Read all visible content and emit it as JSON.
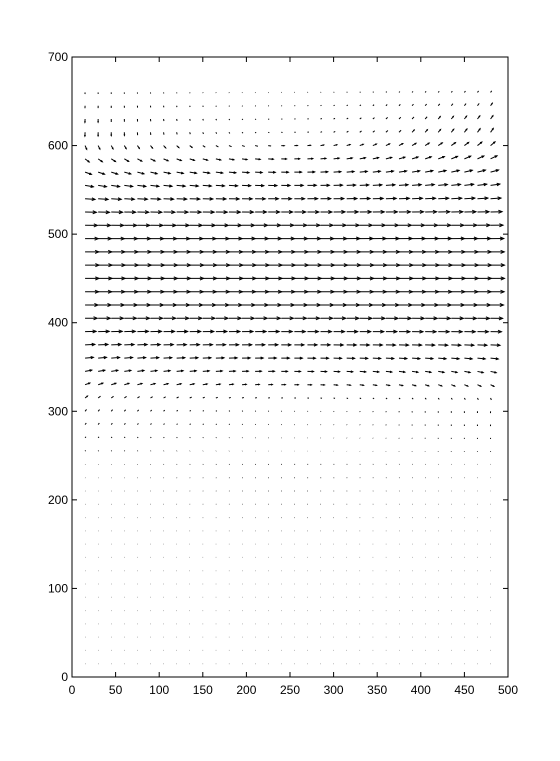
{
  "chart_data": {
    "type": "quiver",
    "title": "",
    "xlabel": "",
    "ylabel": "",
    "xlim": [
      0,
      500
    ],
    "ylim": [
      0,
      700
    ],
    "xticks": [
      0,
      50,
      100,
      150,
      200,
      250,
      300,
      350,
      400,
      450,
      500
    ],
    "yticks": [
      0,
      100,
      200,
      300,
      400,
      500,
      600,
      700
    ],
    "grid": false,
    "legend": "none",
    "arrow_color": "#000000",
    "grid_spacing": 15,
    "x_start": 15,
    "y_start": 15,
    "y_end": 660,
    "x_end": 480,
    "flow": {
      "jet_center_y": 460,
      "jet_half_width": 150,
      "max_u": 16,
      "edge_tilt": 4
    }
  }
}
